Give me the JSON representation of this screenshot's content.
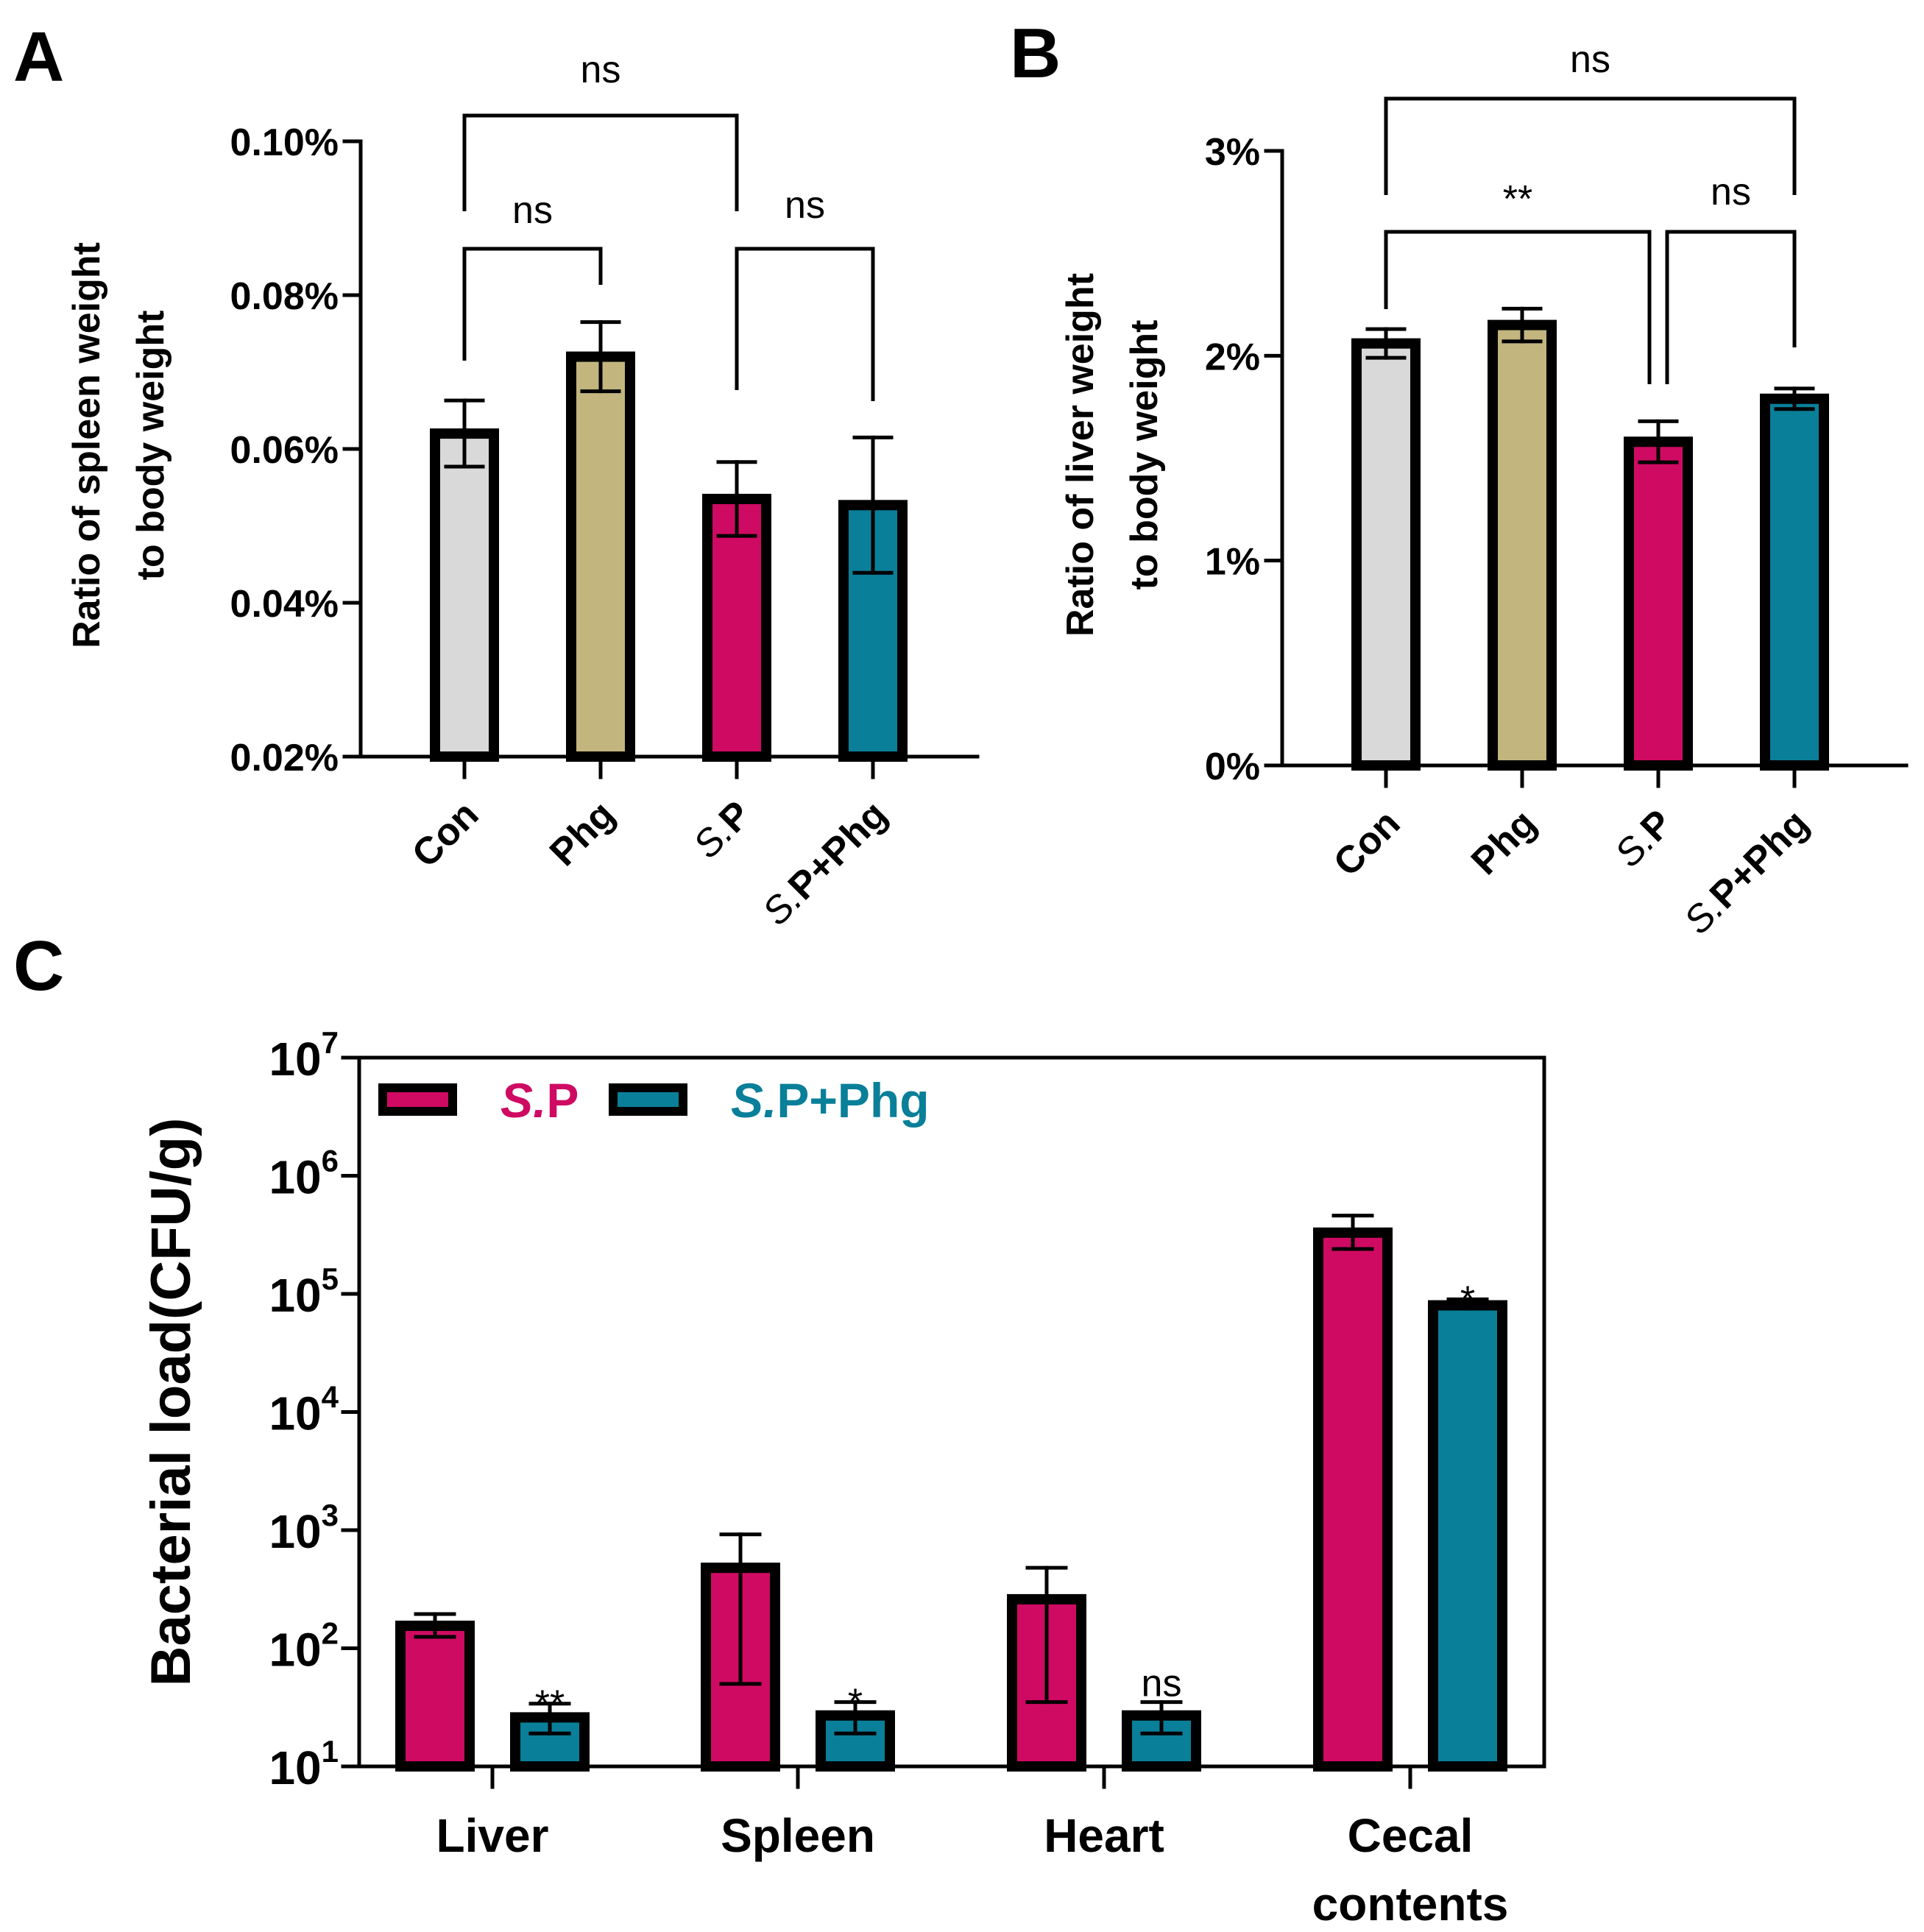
{
  "colors": {
    "con": "#d9d9d9",
    "phg": "#c2b57e",
    "sp": "#cf0a62",
    "sp_phg": "#0a7f99",
    "ink": "#000000"
  },
  "chart_data": [
    {
      "id": "A",
      "panel_label": "A",
      "type": "bar",
      "title": "",
      "ylabel_lines": [
        "Ratio of spleen weight",
        "to body weight"
      ],
      "ylim": [
        0.02,
        0.1
      ],
      "yticks": [
        0.02,
        0.04,
        0.06,
        0.08,
        0.1
      ],
      "ytick_labels": [
        "0.02%",
        "0.04%",
        "0.06%",
        "0.08%",
        "0.10%"
      ],
      "categories": [
        {
          "italic": "",
          "label": "Con",
          "color": "con"
        },
        {
          "italic": "",
          "label": "Phg",
          "color": "phg"
        },
        {
          "italic": "S.",
          "label": "P",
          "color": "sp"
        },
        {
          "italic": "S.",
          "label": "P+Phg",
          "color": "sp_phg"
        }
      ],
      "values": [
        0.062,
        0.072,
        0.0535,
        0.0527
      ],
      "errors": [
        0.0043,
        0.0045,
        0.0048,
        0.0088
      ],
      "comparisons": [
        {
          "from": 0,
          "to": 2,
          "label": "ns"
        },
        {
          "from": 0,
          "to": 1,
          "label": "ns"
        },
        {
          "from": 2,
          "to": 3,
          "label": "ns"
        }
      ]
    },
    {
      "id": "B",
      "panel_label": "B",
      "type": "bar",
      "title": "",
      "ylabel_lines": [
        "Ratio of liver weight",
        "to body weight"
      ],
      "ylim": [
        0,
        3
      ],
      "yticks": [
        0,
        1,
        2,
        3
      ],
      "ytick_labels": [
        "0%",
        "1%",
        "2%",
        "3%"
      ],
      "categories": [
        {
          "italic": "",
          "label": "Con",
          "color": "con"
        },
        {
          "italic": "",
          "label": "Phg",
          "color": "phg"
        },
        {
          "italic": "S.",
          "label": "P",
          "color": "sp"
        },
        {
          "italic": "S.",
          "label": "P+Phg",
          "color": "sp_phg"
        }
      ],
      "values": [
        2.06,
        2.15,
        1.58,
        1.79
      ],
      "errors": [
        0.07,
        0.08,
        0.1,
        0.05
      ],
      "comparisons": [
        {
          "from": 0,
          "to": 3,
          "label": "ns"
        },
        {
          "from": 0,
          "to": 2,
          "label": "**"
        },
        {
          "from": 2,
          "to": 3,
          "label": "ns"
        }
      ]
    },
    {
      "id": "C",
      "panel_label": "C",
      "type": "bar",
      "title": "",
      "ylabel": "Bacterial load(CFU/g)",
      "yscale": "log",
      "ylim": [
        10,
        10000000
      ],
      "ytick_exponents": [
        "1",
        "2",
        "3",
        "4",
        "5",
        "6",
        "7"
      ],
      "ytick_base": "10",
      "categories": [
        "Liver",
        "Spleen",
        "Heart",
        "Cecal contents"
      ],
      "category_lines": [
        [
          "Liver"
        ],
        [
          "Spleen"
        ],
        [
          "Heart"
        ],
        [
          "Cecal",
          "contents"
        ]
      ],
      "legend": [
        {
          "italic": "S.",
          "label": "P",
          "color": "sp"
        },
        {
          "italic": "S.",
          "label": "P+Phg",
          "color": "sp_phg"
        }
      ],
      "series": [
        {
          "name": "S.P",
          "color": "sp",
          "values": [
            155,
            480,
            260,
            330000
          ],
          "err_low": [
            125,
            50,
            35,
            240000
          ],
          "err_high": [
            195,
            920,
            480,
            460000
          ]
        },
        {
          "name": "S.P+Phg",
          "color": "sp_phg",
          "values": [
            26,
            27,
            27,
            80000
          ],
          "err_low": [
            19,
            19,
            19,
            75000
          ],
          "err_high": [
            34,
            35,
            35,
            90000
          ]
        }
      ],
      "significance": [
        "**",
        "*",
        "ns",
        "*"
      ]
    }
  ]
}
